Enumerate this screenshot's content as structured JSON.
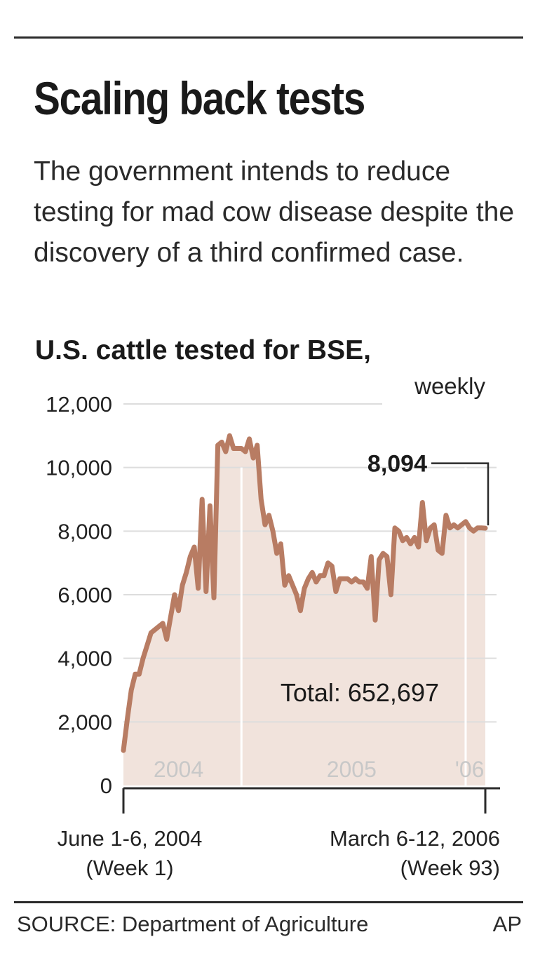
{
  "headline": "Scaling back tests",
  "intro": "The government intends to reduce testing for mad cow disease despite the discovery of a third confirmed case.",
  "source": "SOURCE: Department of Agriculture",
  "credit": "AP",
  "colors": {
    "line": "#b87c63",
    "fill": "#f1e3dc",
    "grid": "#dddddd",
    "text": "#222222",
    "year_label": "#c8c8c8"
  },
  "chart_data": {
    "type": "area",
    "title": "U.S. cattle tested for BSE,",
    "subtitle": "weekly",
    "xlabel": "",
    "ylabel": "",
    "ylim": [
      0,
      12000
    ],
    "yticks": [
      0,
      2000,
      4000,
      6000,
      8000,
      10000,
      12000
    ],
    "ytick_labels": [
      "0",
      "2,000",
      "4,000",
      "6,000",
      "8,000",
      "10,000",
      "12,000"
    ],
    "grid": true,
    "xlim": [
      1,
      93
    ],
    "x_start_label": [
      "June 1-6, 2004",
      "(Week 1)"
    ],
    "x_end_label": [
      "March 6-12, 2006",
      "(Week 93)"
    ],
    "year_labels": [
      {
        "text": "2004",
        "x": 15
      },
      {
        "text": "2005",
        "x": 59
      },
      {
        "text": "'06",
        "x": 89
      }
    ],
    "year_dividers": [
      31,
      88
    ],
    "annotations": [
      {
        "text": "8,094",
        "x": 93,
        "y": 8094
      },
      {
        "text": "Total: 652,697"
      }
    ],
    "series": [
      {
        "x": [
          1,
          2,
          3,
          4,
          5,
          6,
          7,
          8,
          9,
          10,
          11,
          12,
          13,
          14,
          15,
          16,
          17,
          18,
          19,
          20,
          21,
          22,
          23,
          24,
          25,
          26,
          27,
          28,
          29,
          30,
          31,
          32,
          33,
          34,
          35,
          36,
          37,
          38,
          39,
          40,
          41,
          42,
          43,
          44,
          45,
          46,
          47,
          48,
          49,
          50,
          51,
          52,
          53,
          54,
          55,
          56,
          57,
          58,
          59,
          60,
          61,
          62,
          63,
          64,
          65,
          66,
          67,
          68,
          69,
          70,
          71,
          72,
          73,
          74,
          75,
          76,
          77,
          78,
          79,
          80,
          81,
          82,
          83,
          84,
          85,
          86,
          87,
          88,
          89,
          90,
          91,
          92,
          93
        ],
        "values": [
          1100,
          2100,
          3000,
          3500,
          3500,
          4000,
          4400,
          4800,
          4900,
          5000,
          5100,
          4600,
          5300,
          6000,
          5500,
          6300,
          6700,
          7200,
          7500,
          6200,
          9000,
          6100,
          8800,
          5900,
          10700,
          10800,
          10500,
          11000,
          10600,
          10600,
          10600,
          10500,
          10900,
          10300,
          10700,
          9000,
          8200,
          8500,
          8000,
          7300,
          7600,
          6300,
          6600,
          6300,
          6000,
          5500,
          6200,
          6500,
          6700,
          6400,
          6600,
          6600,
          7000,
          6900,
          6100,
          6500,
          6500,
          6500,
          6400,
          6500,
          6400,
          6400,
          6200,
          7200,
          5200,
          7100,
          7300,
          7200,
          6000,
          8100,
          8000,
          7700,
          7800,
          7600,
          7800,
          7500,
          8900,
          7700,
          8094,
          8200,
          7400,
          7300,
          8500,
          8100,
          8200,
          8100,
          8200,
          8300,
          8100,
          8000,
          8100,
          8100,
          8094
        ]
      }
    ]
  }
}
